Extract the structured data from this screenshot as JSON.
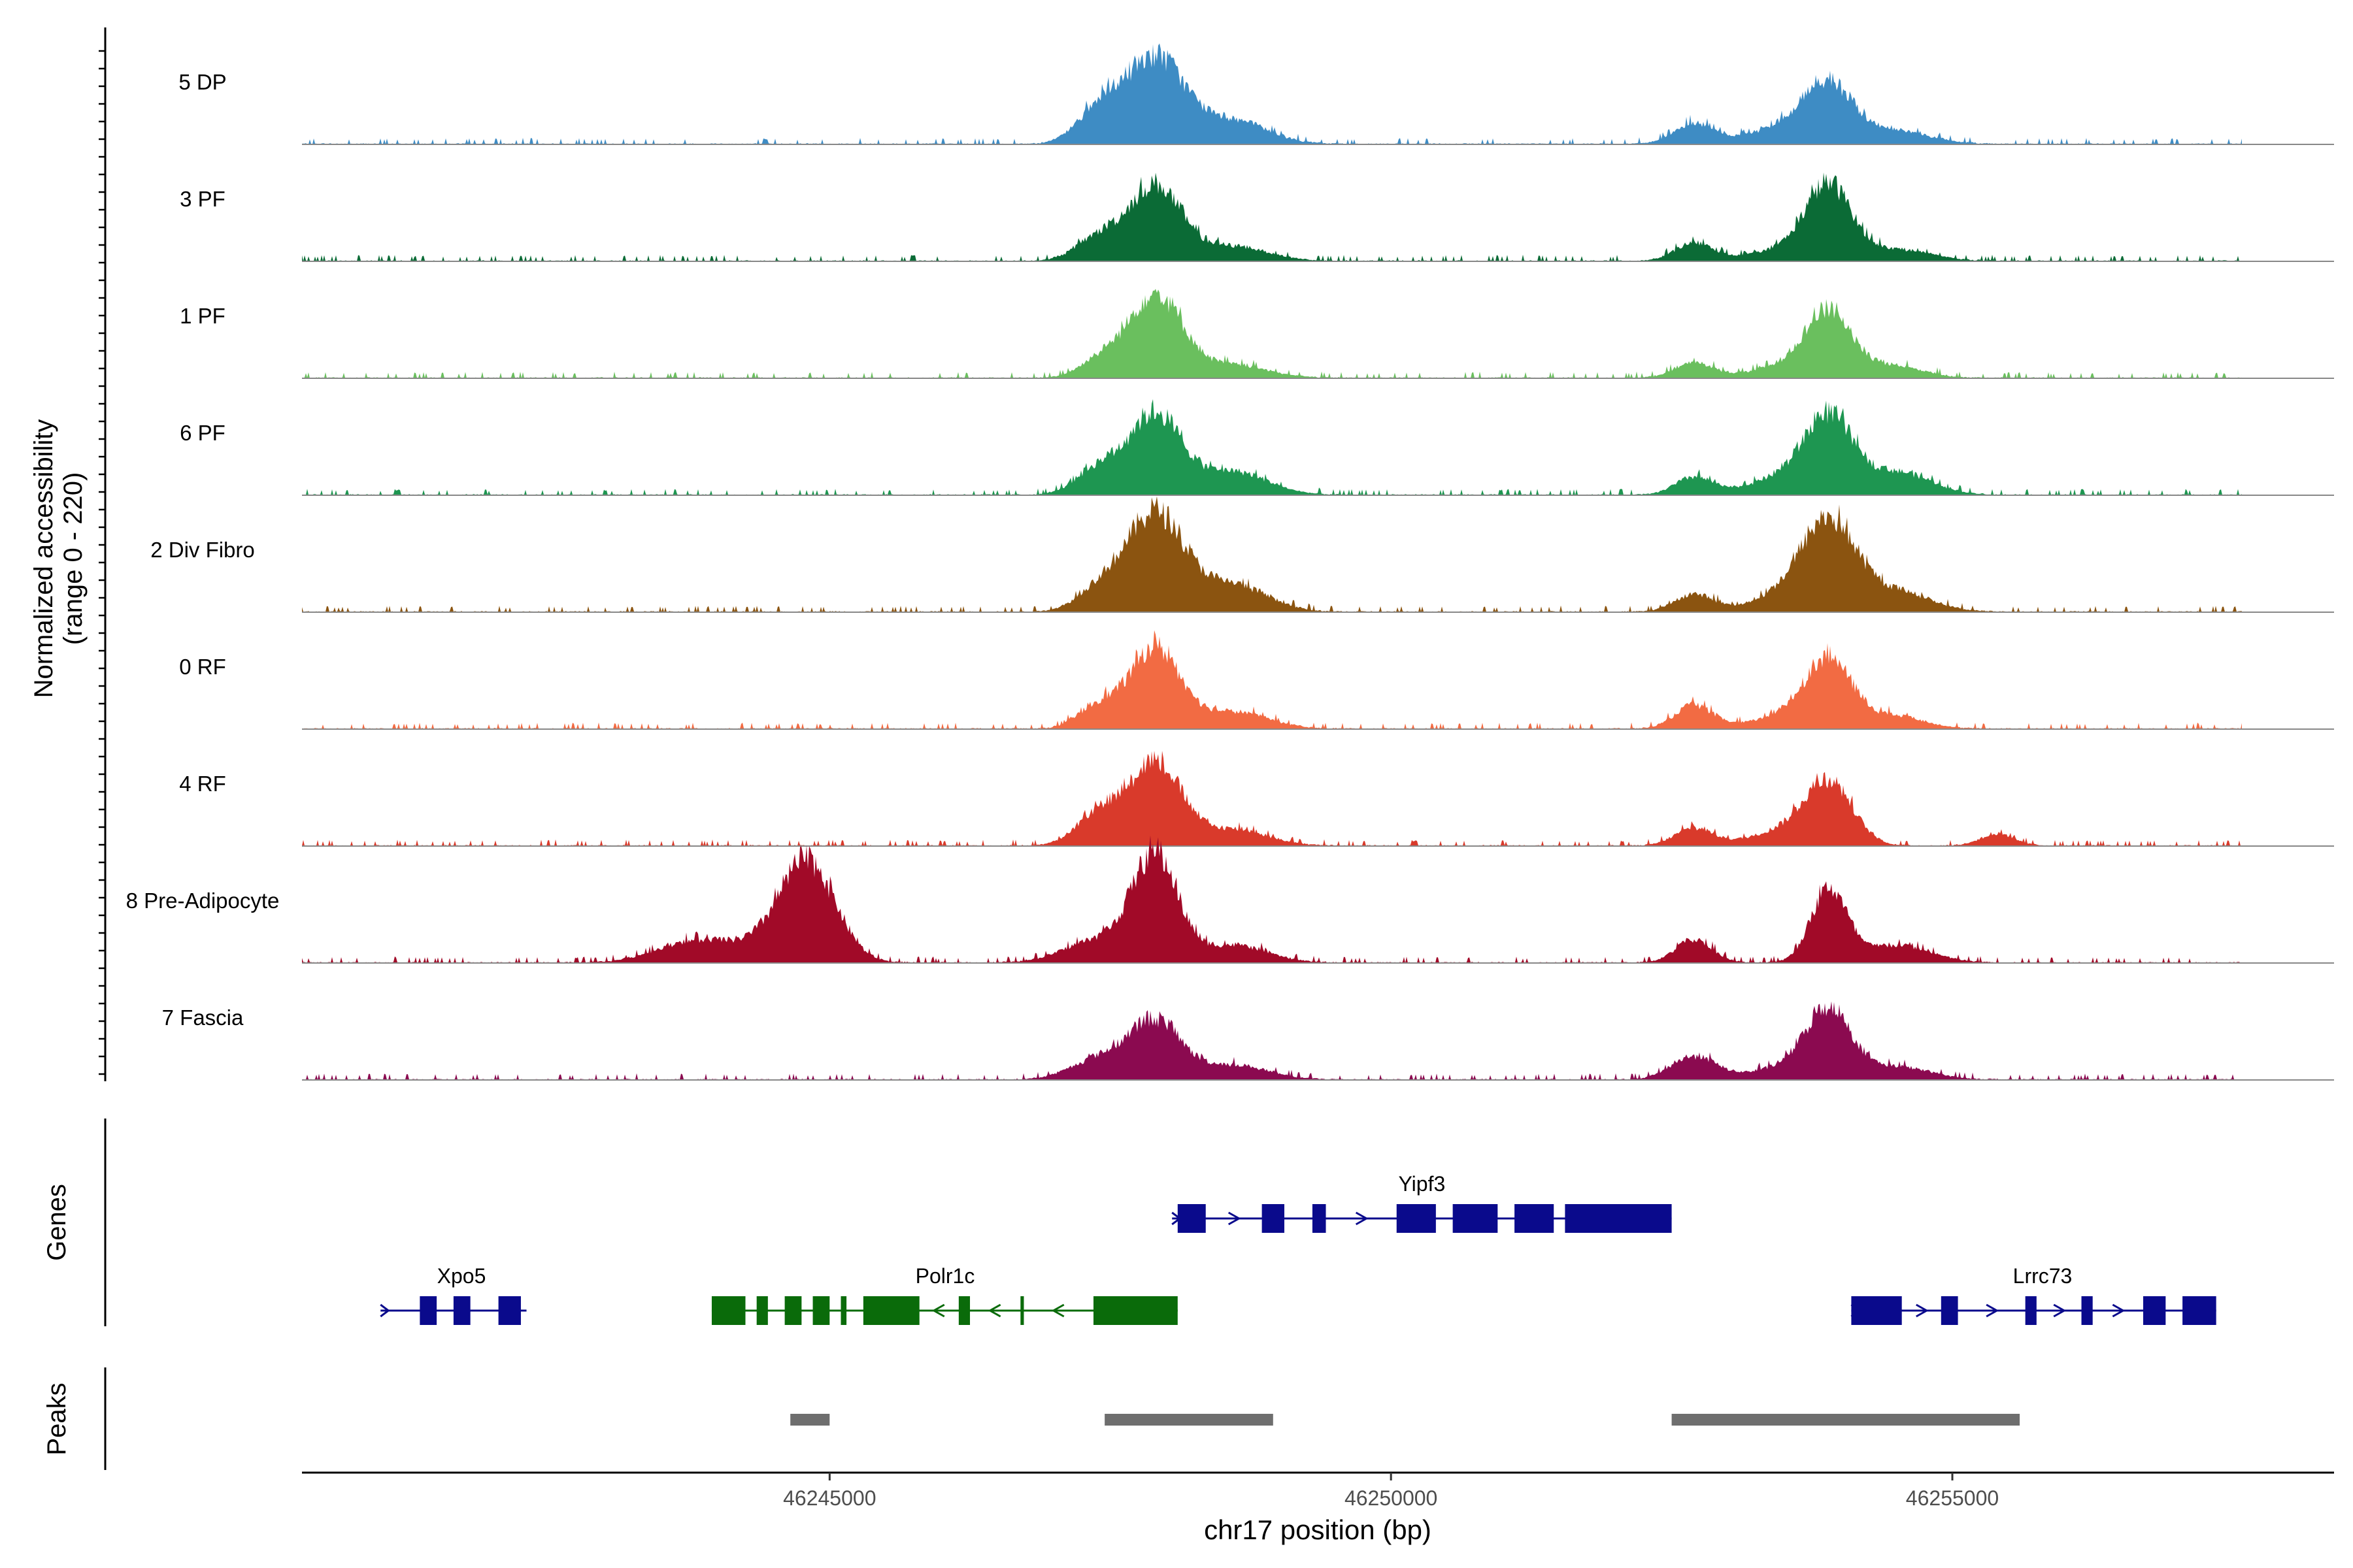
{
  "chart_data": {
    "type": "area",
    "title": "",
    "xlabel": "chr17 position (bp)",
    "ylabel_line1": "Normalized accessibility",
    "ylabel_line2": "(range 0 - 220)",
    "yrange": [
      0,
      220
    ],
    "xlim": [
      46240300,
      46258400
    ],
    "x_ticks": [
      46245000,
      46250000,
      46255000
    ],
    "x_tick_labels": [
      "46245000",
      "46250000",
      "46255000"
    ],
    "series": [
      {
        "name": "5 DP",
        "color": "#3E8CC4",
        "peaks": [
          [
            46247900,
            150,
            260
          ],
          [
            46247400,
            55,
            200
          ],
          [
            46248600,
            40,
            300
          ],
          [
            46252700,
            35,
            180
          ],
          [
            46253500,
            28,
            300
          ],
          [
            46253900,
            95,
            220
          ],
          [
            46254500,
            22,
            300
          ]
        ]
      },
      {
        "name": "3 PF",
        "color": "#0B6B36",
        "peaks": [
          [
            46247900,
            130,
            230
          ],
          [
            46247400,
            40,
            200
          ],
          [
            46248600,
            25,
            300
          ],
          [
            46252700,
            30,
            170
          ],
          [
            46253500,
            20,
            300
          ],
          [
            46253900,
            125,
            200
          ],
          [
            46254500,
            20,
            300
          ]
        ]
      },
      {
        "name": "1 PF",
        "color": "#6ABF5E",
        "peaks": [
          [
            46247900,
            145,
            240
          ],
          [
            46247400,
            28,
            180
          ],
          [
            46248600,
            22,
            300
          ],
          [
            46252700,
            26,
            170
          ],
          [
            46253500,
            18,
            300
          ],
          [
            46253900,
            110,
            210
          ],
          [
            46254500,
            20,
            250
          ]
        ]
      },
      {
        "name": "6 PF",
        "color": "#1E9651",
        "peaks": [
          [
            46247900,
            140,
            230
          ],
          [
            46247400,
            45,
            200
          ],
          [
            46248600,
            40,
            300
          ],
          [
            46252700,
            30,
            170
          ],
          [
            46253500,
            30,
            300
          ],
          [
            46253900,
            125,
            210
          ],
          [
            46254500,
            40,
            300
          ]
        ]
      },
      {
        "name": "2 Div Fibro",
        "color": "#8B5410",
        "peaks": [
          [
            46247900,
            170,
            260
          ],
          [
            46247400,
            35,
            200
          ],
          [
            46248600,
            45,
            300
          ],
          [
            46252700,
            30,
            170
          ],
          [
            46253500,
            25,
            300
          ],
          [
            46253900,
            150,
            240
          ],
          [
            46254500,
            35,
            300
          ]
        ]
      },
      {
        "name": "0 RF",
        "color": "#F26B43",
        "peaks": [
          [
            46247900,
            140,
            220
          ],
          [
            46247400,
            40,
            180
          ],
          [
            46248600,
            30,
            300
          ],
          [
            46252700,
            40,
            170
          ],
          [
            46253500,
            20,
            300
          ],
          [
            46253900,
            115,
            210
          ],
          [
            46254500,
            22,
            250
          ]
        ]
      },
      {
        "name": "4 RF",
        "color": "#D93A2B",
        "peaks": [
          [
            46247900,
            145,
            230
          ],
          [
            46247400,
            55,
            200
          ],
          [
            46248600,
            28,
            300
          ],
          [
            46252700,
            30,
            170
          ],
          [
            46253500,
            25,
            300
          ],
          [
            46253900,
            105,
            210
          ],
          [
            46255400,
            20,
            150
          ]
        ]
      },
      {
        "name": "8 Pre-Adipocyte",
        "color": "#A10A28",
        "peaks": [
          [
            46244800,
            175,
            250
          ],
          [
            46243700,
            30,
            300
          ],
          [
            46244200,
            25,
            300
          ],
          [
            46247900,
            180,
            200
          ],
          [
            46247400,
            40,
            300
          ],
          [
            46248600,
            30,
            300
          ],
          [
            46252700,
            40,
            160
          ],
          [
            46253900,
            125,
            160
          ],
          [
            46254500,
            30,
            300
          ]
        ]
      },
      {
        "name": "7 Fascia",
        "color": "#8B0A50",
        "peaks": [
          [
            46247900,
            100,
            230
          ],
          [
            46247400,
            35,
            250
          ],
          [
            46248600,
            25,
            300
          ],
          [
            46252700,
            40,
            200
          ],
          [
            46253500,
            20,
            300
          ],
          [
            46253900,
            115,
            200
          ],
          [
            46254500,
            22,
            300
          ]
        ]
      }
    ],
    "genes_track_label": "Genes",
    "genes": [
      {
        "name": "Yipf3",
        "strand": "+",
        "color": "#0A0A8C",
        "start": 46248050,
        "end": 46252500,
        "exons": [
          [
            46248100,
            46248350
          ],
          [
            46248850,
            46249050
          ],
          [
            46249300,
            46249420
          ],
          [
            46250050,
            46250400
          ],
          [
            46250550,
            46250950
          ],
          [
            46251100,
            46251450
          ],
          [
            46251550,
            46252500
          ]
        ]
      },
      {
        "name": "Xpo5",
        "strand": "+",
        "color": "#0A0A8C",
        "start": 46241000,
        "end": 46242300,
        "exons": [
          [
            46241350,
            46241500
          ],
          [
            46241650,
            46241800
          ],
          [
            46242050,
            46242250
          ]
        ]
      },
      {
        "name": "Polr1c",
        "strand": "-",
        "color": "#0A6B0A",
        "start": 46243950,
        "end": 46248100,
        "exons": [
          [
            46243950,
            46244250
          ],
          [
            46244350,
            46244450
          ],
          [
            46244600,
            46244750
          ],
          [
            46244850,
            46245000
          ],
          [
            46245100,
            46245150
          ],
          [
            46245300,
            46245800
          ],
          [
            46246150,
            46246250
          ],
          [
            46246700,
            46246730
          ],
          [
            46247350,
            46248100
          ]
        ]
      },
      {
        "name": "Lrrc73",
        "strand": "+",
        "color": "#0A0A8C",
        "start": 46254100,
        "end": 46257350,
        "exons": [
          [
            46254100,
            46254550
          ],
          [
            46254900,
            46255050
          ],
          [
            46255650,
            46255750
          ],
          [
            46256150,
            46256250
          ],
          [
            46256700,
            46256900
          ],
          [
            46257050,
            46257350
          ]
        ]
      }
    ],
    "peaks_track_label": "Peaks",
    "called_peaks": [
      [
        46244650,
        46245000
      ],
      [
        46247450,
        46248950
      ],
      [
        46252500,
        46255600
      ]
    ]
  }
}
